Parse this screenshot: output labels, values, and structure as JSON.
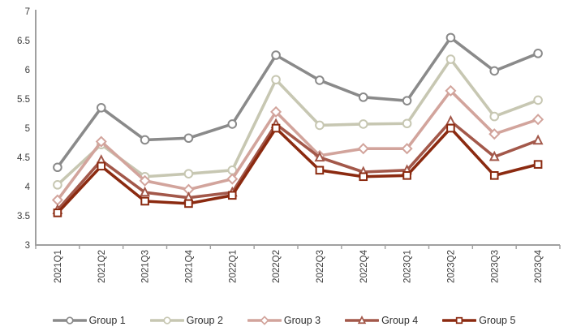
{
  "chart_data": {
    "type": "line",
    "title": "",
    "xlabel": "",
    "ylabel": "",
    "x": [
      "2021Q1",
      "2021Q2",
      "2021Q3",
      "2021Q4",
      "2022Q1",
      "2022Q2",
      "2022Q3",
      "2022Q4",
      "2023Q1",
      "2023Q2",
      "2023Q3",
      "2023Q4"
    ],
    "series": [
      {
        "name": "Group 1",
        "marker": "circle",
        "color": "#8a8a8a",
        "values": [
          4.33,
          5.35,
          4.8,
          4.83,
          5.07,
          6.25,
          5.82,
          5.53,
          5.47,
          6.55,
          5.98,
          6.28
        ]
      },
      {
        "name": "Group 2",
        "marker": "circle",
        "color": "#c7c7b2",
        "values": [
          4.03,
          4.72,
          4.17,
          4.22,
          4.28,
          5.83,
          5.05,
          5.07,
          5.08,
          6.18,
          5.2,
          5.48
        ]
      },
      {
        "name": "Group 3",
        "marker": "diamond",
        "color": "#d2a49c",
        "values": [
          3.77,
          4.77,
          4.1,
          3.95,
          4.13,
          5.28,
          4.53,
          4.65,
          4.65,
          5.64,
          4.9,
          5.15
        ]
      },
      {
        "name": "Group 4",
        "marker": "triangle",
        "color": "#a3584a",
        "values": [
          3.6,
          4.45,
          3.9,
          3.81,
          3.9,
          5.07,
          4.5,
          4.25,
          4.28,
          5.12,
          4.51,
          4.79
        ]
      },
      {
        "name": "Group 5",
        "marker": "square",
        "color": "#8b2a10",
        "values": [
          3.55,
          4.35,
          3.75,
          3.71,
          3.85,
          5.0,
          4.28,
          4.17,
          4.19,
          5.0,
          4.19,
          4.38
        ]
      }
    ],
    "ylim": [
      3,
      7
    ],
    "yticks": [
      "3",
      "3.5",
      "4",
      "4.5",
      "5",
      "5.5",
      "6",
      "6.5",
      "7"
    ],
    "grid": false,
    "legend_position": "bottom",
    "axis_color": "#a0a0a0",
    "label_color": "#3d3d3d",
    "background": "#ffffff"
  }
}
